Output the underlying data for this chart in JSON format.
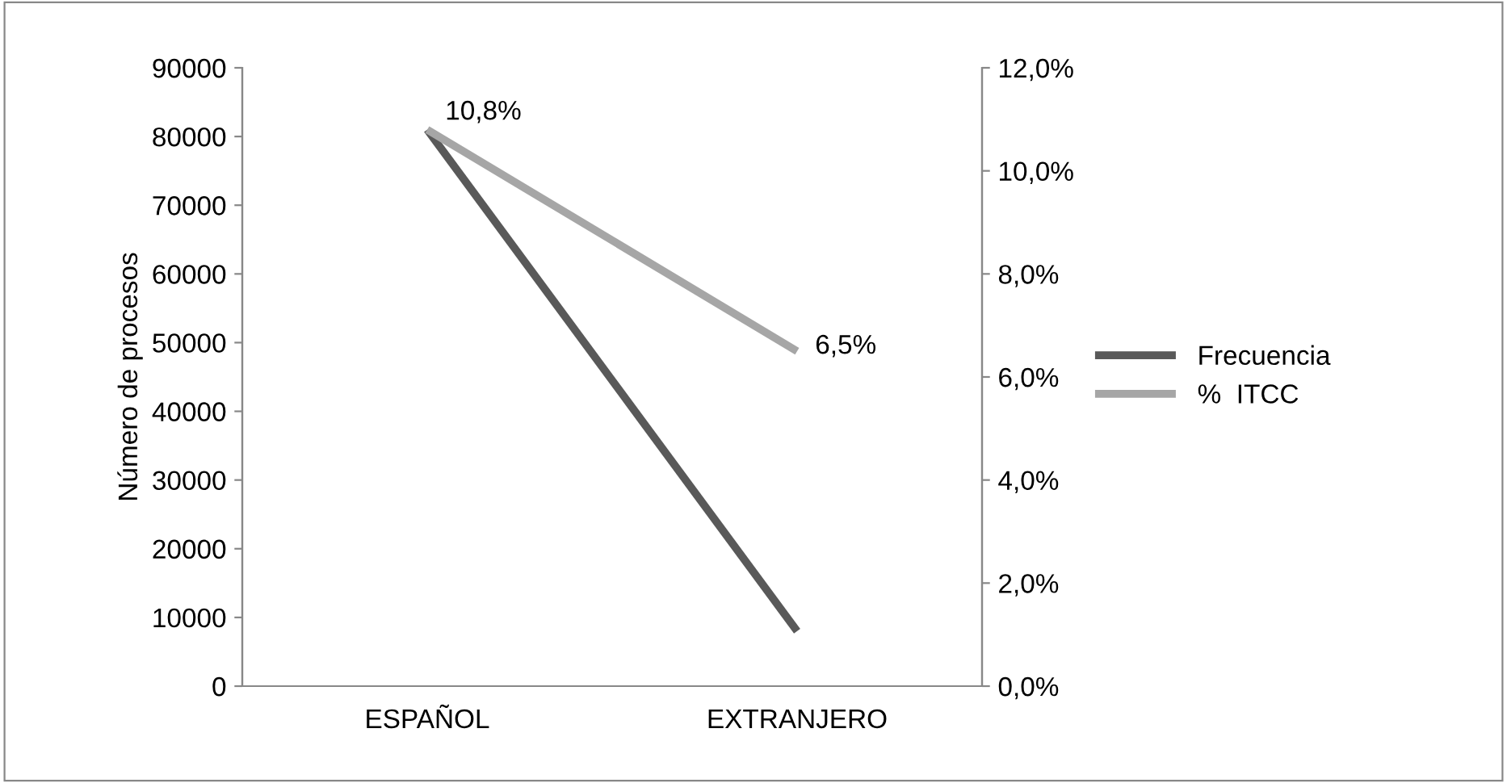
{
  "chart_data": {
    "type": "line",
    "ylabel": "Número de procesos",
    "categories": [
      "ESPAÑOL",
      "EXTRANJERO"
    ],
    "series": [
      {
        "name": "Frecuencia",
        "color": "#595959",
        "values": [
          81000,
          8000
        ]
      },
      {
        "name": "%  ITCC",
        "color": "#a6a6a6",
        "values": [
          10.8,
          6.5
        ],
        "axis": "y2",
        "value_labels": [
          "10,8%",
          "6,5%"
        ]
      }
    ],
    "ylim": [
      0,
      90000
    ],
    "yticks": [
      0,
      10000,
      20000,
      30000,
      40000,
      50000,
      60000,
      70000,
      80000,
      90000
    ],
    "y2lim": [
      0,
      12
    ],
    "y2ticks": [
      {
        "value": 0,
        "label": "0,0%"
      },
      {
        "value": 2,
        "label": "2,0%"
      },
      {
        "value": 4,
        "label": "4,0%"
      },
      {
        "value": 6,
        "label": "6,0%"
      },
      {
        "value": 8,
        "label": "8,0%"
      },
      {
        "value": 10,
        "label": "10,0%"
      },
      {
        "value": 12,
        "label": "12,0%"
      }
    ],
    "grid": false,
    "legend": "right",
    "marker": "none",
    "line_style": "solid"
  }
}
